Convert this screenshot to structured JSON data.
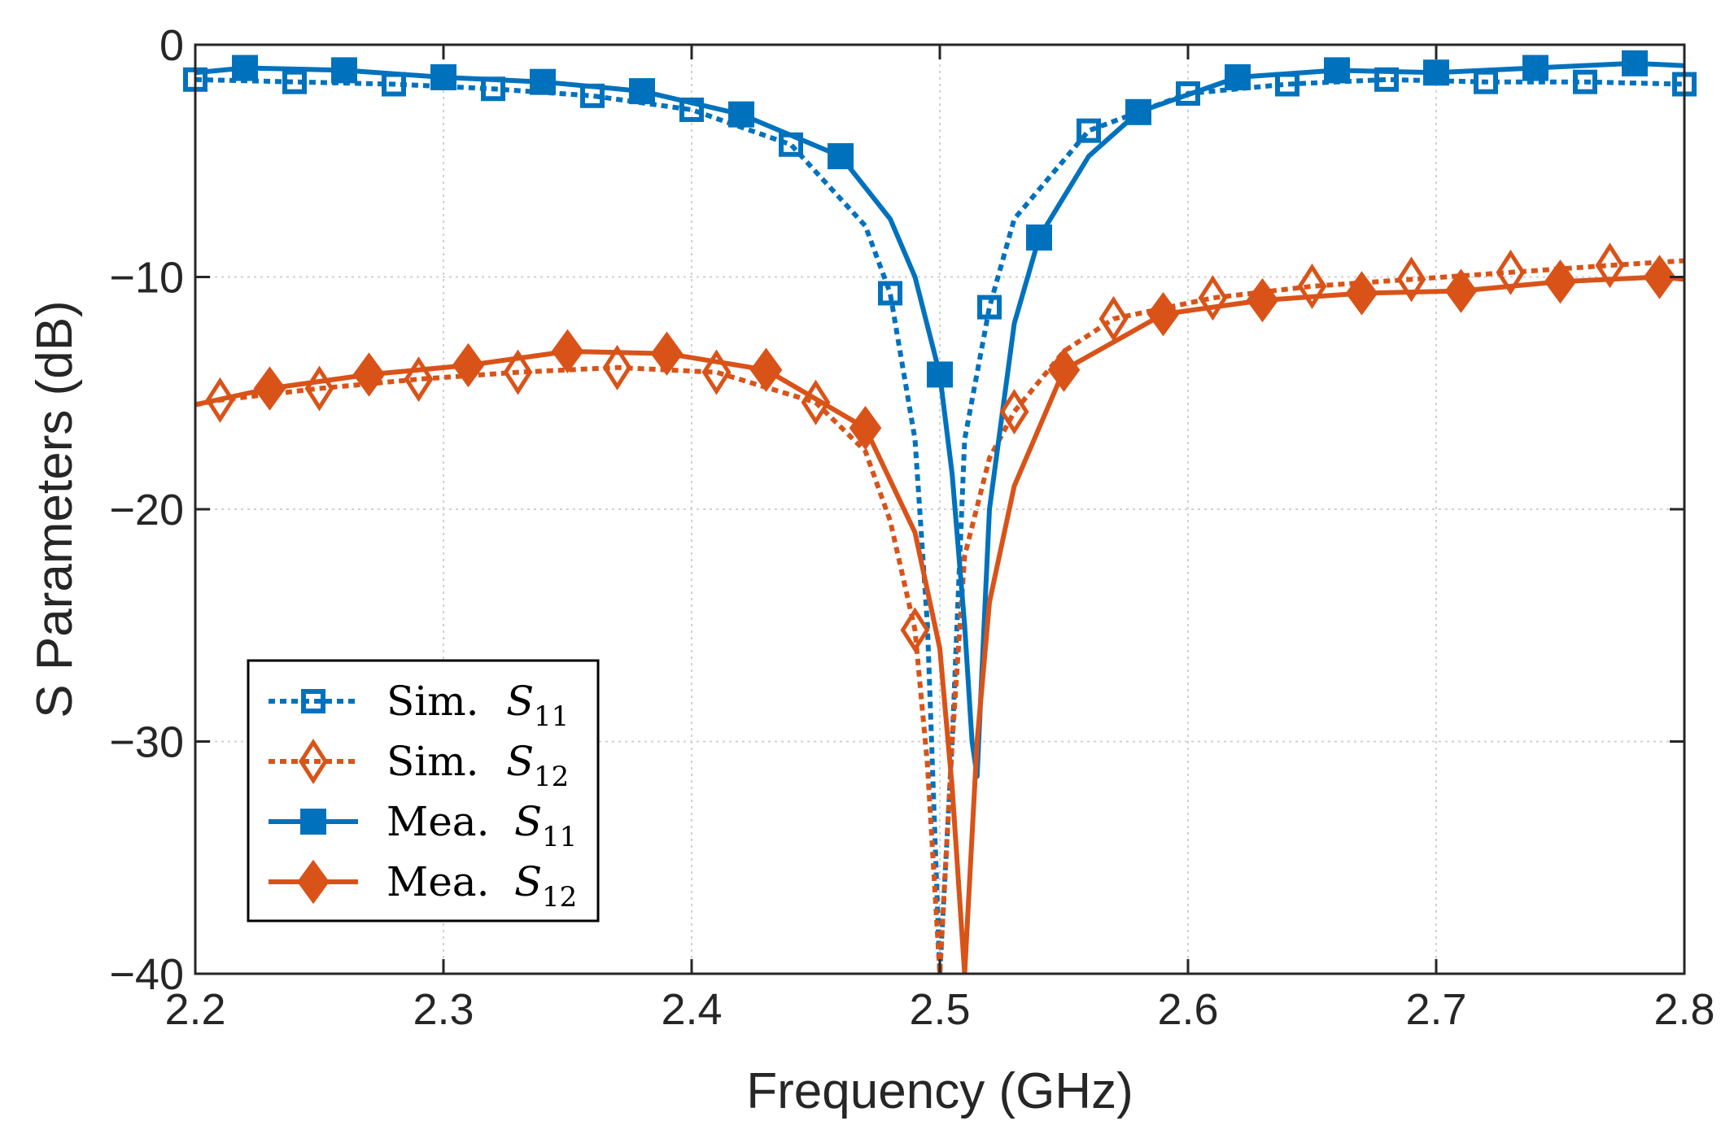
{
  "chart_data": {
    "type": "line",
    "title": "",
    "xlabel": "Frequency (GHz)",
    "ylabel": "S Parameters (dB)",
    "xlim": [
      2.2,
      2.8
    ],
    "ylim": [
      -40,
      0
    ],
    "xticks": [
      2.2,
      2.3,
      2.4,
      2.5,
      2.6,
      2.7,
      2.8
    ],
    "xtick_labels": [
      "2.2",
      "2.3",
      "2.4",
      "2.5",
      "2.6",
      "2.7",
      "2.8"
    ],
    "yticks": [
      0,
      -10,
      -20,
      -30,
      -40
    ],
    "ytick_labels": [
      "0",
      "−10",
      "−20",
      "−30",
      "−40"
    ],
    "grid": true,
    "legend_position": "bottom-left",
    "series": [
      {
        "name": "Sim. S11",
        "label_prefix": "Sim.",
        "symbol": "S",
        "subscript": "11",
        "color": "#0072BD",
        "line_style": "dotted",
        "marker": "square-open",
        "x": [
          2.2,
          2.24,
          2.28,
          2.32,
          2.36,
          2.4,
          2.44,
          2.47,
          2.48,
          2.49,
          2.495,
          2.5,
          2.505,
          2.51,
          2.52,
          2.53,
          2.56,
          2.6,
          2.64,
          2.68,
          2.72,
          2.76,
          2.8
        ],
        "values": [
          -1.5,
          -1.6,
          -1.7,
          -1.9,
          -2.2,
          -2.8,
          -4.3,
          -7.8,
          -10.7,
          -17.0,
          -25.0,
          -40.0,
          -30.0,
          -17.0,
          -11.3,
          -7.5,
          -3.7,
          -2.1,
          -1.7,
          -1.5,
          -1.6,
          -1.6,
          -1.7
        ],
        "marker_x": [
          2.2,
          2.24,
          2.28,
          2.32,
          2.36,
          2.4,
          2.44,
          2.48,
          2.52,
          2.56,
          2.6,
          2.64,
          2.68,
          2.72,
          2.76,
          2.8
        ],
        "marker_values": [
          -1.5,
          -1.6,
          -1.7,
          -1.9,
          -2.2,
          -2.8,
          -4.3,
          -10.7,
          -11.3,
          -3.7,
          -2.1,
          -1.7,
          -1.5,
          -1.6,
          -1.6,
          -1.7
        ]
      },
      {
        "name": "Sim. S12",
        "label_prefix": "Sim.",
        "symbol": "S",
        "subscript": "12",
        "color": "#D95319",
        "line_style": "dotted",
        "marker": "diamond-open",
        "x": [
          2.2,
          2.21,
          2.25,
          2.29,
          2.33,
          2.37,
          2.41,
          2.45,
          2.47,
          2.48,
          2.49,
          2.495,
          2.5,
          2.505,
          2.51,
          2.52,
          2.53,
          2.55,
          2.57,
          2.61,
          2.65,
          2.69,
          2.73,
          2.77,
          2.8
        ],
        "values": [
          -15.5,
          -15.3,
          -14.8,
          -14.4,
          -14.1,
          -13.9,
          -14.1,
          -15.4,
          -17.5,
          -20.5,
          -25.2,
          -31.0,
          -40.0,
          -30.0,
          -22.0,
          -17.8,
          -15.8,
          -13.2,
          -11.8,
          -10.9,
          -10.4,
          -10.1,
          -9.8,
          -9.5,
          -9.3
        ],
        "marker_x": [
          2.21,
          2.25,
          2.29,
          2.33,
          2.37,
          2.41,
          2.45,
          2.49,
          2.53,
          2.57,
          2.61,
          2.65,
          2.69,
          2.73,
          2.77
        ],
        "marker_values": [
          -15.3,
          -14.8,
          -14.4,
          -14.1,
          -13.9,
          -14.1,
          -15.4,
          -25.2,
          -15.8,
          -11.8,
          -10.9,
          -10.4,
          -10.1,
          -9.8,
          -9.5
        ]
      },
      {
        "name": "Mea. S11",
        "label_prefix": "Mea.",
        "symbol": "S",
        "subscript": "11",
        "color": "#0072BD",
        "line_style": "solid",
        "marker": "square-filled",
        "x": [
          2.2,
          2.22,
          2.26,
          2.3,
          2.34,
          2.38,
          2.42,
          2.46,
          2.48,
          2.49,
          2.5,
          2.505,
          2.51,
          2.513,
          2.515,
          2.52,
          2.53,
          2.54,
          2.56,
          2.58,
          2.62,
          2.66,
          2.7,
          2.74,
          2.78,
          2.8
        ],
        "values": [
          -1.2,
          -1.0,
          -1.1,
          -1.4,
          -1.6,
          -2.0,
          -3.0,
          -4.8,
          -7.5,
          -10.0,
          -14.2,
          -18.5,
          -25.0,
          -30.0,
          -31.5,
          -20.0,
          -12.0,
          -8.3,
          -4.8,
          -2.9,
          -1.4,
          -1.1,
          -1.2,
          -1.0,
          -0.8,
          -0.9
        ],
        "marker_x": [
          2.22,
          2.26,
          2.3,
          2.34,
          2.38,
          2.42,
          2.46,
          2.5,
          2.54,
          2.58,
          2.62,
          2.66,
          2.7,
          2.74,
          2.78
        ],
        "marker_values": [
          -1.0,
          -1.1,
          -1.4,
          -1.6,
          -2.0,
          -3.0,
          -4.8,
          -14.2,
          -8.3,
          -2.9,
          -1.4,
          -1.1,
          -1.2,
          -1.0,
          -0.8
        ]
      },
      {
        "name": "Mea. S12",
        "label_prefix": "Mea.",
        "symbol": "S",
        "subscript": "12",
        "color": "#D95319",
        "line_style": "solid",
        "marker": "diamond-filled",
        "x": [
          2.2,
          2.23,
          2.27,
          2.31,
          2.35,
          2.39,
          2.43,
          2.47,
          2.49,
          2.5,
          2.505,
          2.51,
          2.515,
          2.52,
          2.53,
          2.55,
          2.59,
          2.63,
          2.67,
          2.71,
          2.75,
          2.79,
          2.8
        ],
        "values": [
          -15.5,
          -14.8,
          -14.2,
          -13.8,
          -13.2,
          -13.3,
          -14.0,
          -16.5,
          -21.0,
          -26.0,
          -32.0,
          -40.0,
          -30.0,
          -24.0,
          -19.0,
          -14.0,
          -11.6,
          -11.0,
          -10.7,
          -10.6,
          -10.2,
          -10.0,
          -10.1
        ],
        "marker_x": [
          2.23,
          2.27,
          2.31,
          2.35,
          2.39,
          2.43,
          2.47,
          2.55,
          2.59,
          2.63,
          2.67,
          2.71,
          2.75,
          2.79
        ],
        "marker_values": [
          -14.8,
          -14.2,
          -13.8,
          -13.2,
          -13.3,
          -14.0,
          -16.5,
          -14.0,
          -11.6,
          -11.0,
          -10.7,
          -10.6,
          -10.2,
          -10.0
        ]
      }
    ]
  }
}
